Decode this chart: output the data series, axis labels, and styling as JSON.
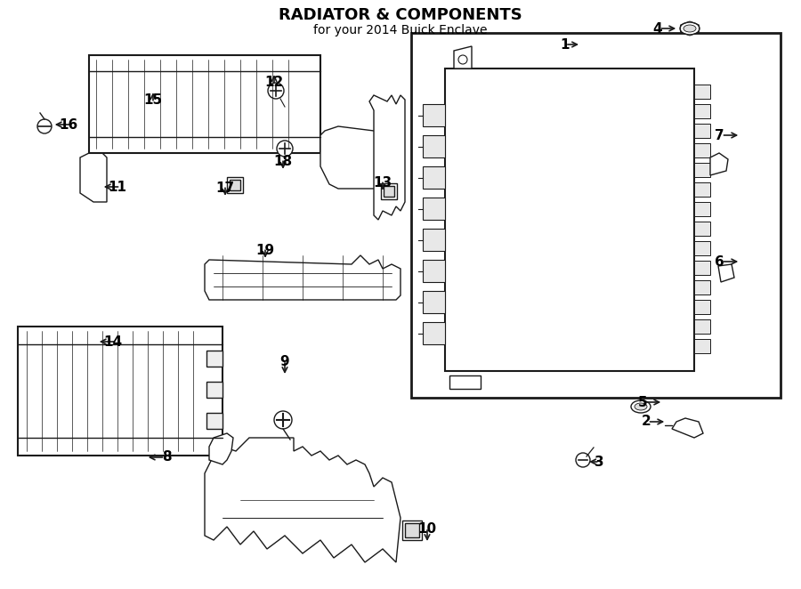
{
  "title": "RADIATOR & COMPONENTS",
  "subtitle": "for your 2014 Buick Enclave",
  "bg_color": "#ffffff",
  "line_color": "#1a1a1a",
  "label_color": "#000000",
  "font_size_title": 13,
  "font_size_label": 11,
  "labels": {
    "1": [
      662,
      612,
      -15,
      0
    ],
    "2": [
      760,
      188,
      -18,
      0
    ],
    "3": [
      652,
      143,
      12,
      0
    ],
    "4": [
      773,
      630,
      -18,
      0
    ],
    "5": [
      756,
      210,
      -18,
      0
    ],
    "6": [
      843,
      368,
      -18,
      0
    ],
    "7": [
      843,
      510,
      -18,
      0
    ],
    "8": [
      153,
      148,
      18,
      0
    ],
    "9": [
      320,
      230,
      0,
      15
    ],
    "10": [
      480,
      42,
      0,
      15
    ],
    "11": [
      103,
      452,
      18,
      0
    ],
    "12": [
      308,
      588,
      0,
      -12
    ],
    "13": [
      430,
      438,
      0,
      12
    ],
    "14": [
      98,
      278,
      18,
      0
    ],
    "15": [
      172,
      568,
      0,
      -12
    ],
    "16": [
      48,
      522,
      18,
      0
    ],
    "17": [
      253,
      432,
      0,
      12
    ],
    "18": [
      318,
      462,
      0,
      12
    ],
    "19": [
      298,
      362,
      0,
      12
    ]
  }
}
